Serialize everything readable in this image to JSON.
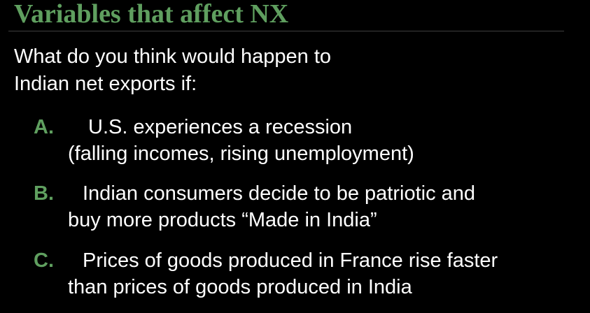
{
  "slide": {
    "title": "Variables that affect NX",
    "intro_line1": "What do you think would happen to",
    "intro_line2": "Indian net exports if:",
    "items": [
      {
        "letter": "A.",
        "line1": "U.S. experiences a recession",
        "line2": "(falling incomes, rising unemployment)"
      },
      {
        "letter": "B.",
        "line1": "Indian consumers decide to be patriotic and",
        "line2": "buy more products “Made in India”"
      },
      {
        "letter": "C.",
        "line1": "Prices of goods produced in France rise faster",
        "line2": "than prices of goods produced in India"
      }
    ]
  },
  "colors": {
    "background": "#000000",
    "title": "#5f9f5f",
    "letters": "#5f9f5f",
    "body_text": "#ffffff"
  }
}
